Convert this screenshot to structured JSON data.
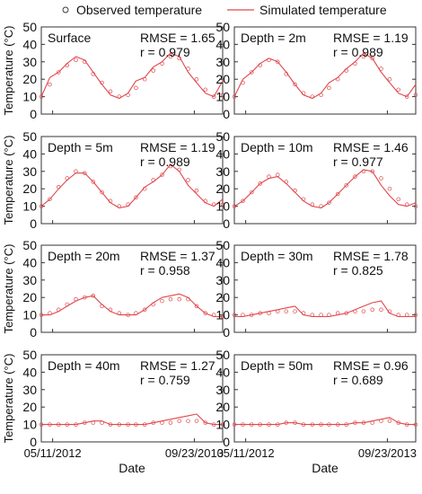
{
  "legend": {
    "observed_label": "Observed temperature",
    "simulated_label": "Simulated temperature",
    "placement": "top-center"
  },
  "colors": {
    "simulated": "#e0474c",
    "observed": "#e0474c",
    "axis": "#333333"
  },
  "chart_data": [
    {
      "type": "line",
      "title": "Surface",
      "rmse": "RMSE = 1.65",
      "r": "r = 0.979",
      "ylabel": "Temperature (°C)",
      "xlabel": "",
      "ylim": [
        0,
        50
      ],
      "yticks": [
        0,
        10,
        20,
        30,
        40,
        50
      ],
      "series": [
        {
          "name": "Simulated temperature",
          "x": [
            "2012-04-01",
            "2012-05-01",
            "2012-06-01",
            "2012-07-01",
            "2012-08-01",
            "2012-09-01",
            "2012-10-01",
            "2012-11-01",
            "2012-12-01",
            "2013-01-01",
            "2013-02-01",
            "2013-03-01",
            "2013-04-01",
            "2013-05-01",
            "2013-06-01",
            "2013-07-01",
            "2013-08-01",
            "2013-09-01",
            "2013-10-01",
            "2013-11-01",
            "2013-12-01",
            "2014-01-01"
          ],
          "y": [
            10,
            21,
            24,
            29,
            33,
            31,
            24,
            17,
            11,
            9,
            12,
            19,
            21,
            27,
            30,
            35,
            33,
            24,
            18,
            12,
            10,
            19
          ]
        },
        {
          "name": "Observed temperature",
          "x": [
            "2012-04-01",
            "2012-05-01",
            "2012-06-01",
            "2012-07-01",
            "2012-08-01",
            "2012-09-01",
            "2012-10-01",
            "2012-11-01",
            "2012-12-01",
            "2013-01-01",
            "2013-02-01",
            "2013-03-01",
            "2013-04-01",
            "2013-05-01",
            "2013-06-01",
            "2013-07-01",
            "2013-08-01",
            "2013-09-01",
            "2013-10-01",
            "2013-11-01",
            "2013-12-01",
            "2014-01-01"
          ],
          "y": [
            10,
            17,
            24,
            28,
            31,
            30,
            23,
            18,
            13,
            10,
            11,
            15,
            20,
            25,
            29,
            33,
            32,
            26,
            20,
            14,
            10,
            11
          ]
        }
      ]
    },
    {
      "type": "line",
      "title": "Depth = 2m",
      "rmse": "RMSE = 1.19",
      "r": "r = 0.989",
      "ylabel": "",
      "xlabel": "",
      "ylim": [
        0,
        50
      ],
      "yticks": [
        0,
        10,
        20,
        30,
        40,
        50
      ],
      "series": [
        {
          "name": "Simulated temperature",
          "x": [
            "2012-04-01",
            "2012-05-01",
            "2012-06-01",
            "2012-07-01",
            "2012-08-01",
            "2012-09-01",
            "2012-10-01",
            "2012-11-01",
            "2012-12-01",
            "2013-01-01",
            "2013-02-01",
            "2013-03-01",
            "2013-04-01",
            "2013-05-01",
            "2013-06-01",
            "2013-07-01",
            "2013-08-01",
            "2013-09-01",
            "2013-10-01",
            "2013-11-01",
            "2013-12-01",
            "2014-01-01"
          ],
          "y": [
            10,
            20,
            24,
            29,
            32,
            30,
            24,
            17,
            11,
            9,
            12,
            18,
            21,
            26,
            30,
            35,
            32,
            24,
            18,
            12,
            10,
            17
          ]
        },
        {
          "name": "Observed temperature",
          "x": [
            "2012-04-01",
            "2012-05-01",
            "2012-06-01",
            "2012-07-01",
            "2012-08-01",
            "2012-09-01",
            "2012-10-01",
            "2012-11-01",
            "2012-12-01",
            "2013-01-01",
            "2013-02-01",
            "2013-03-01",
            "2013-04-01",
            "2013-05-01",
            "2013-06-01",
            "2013-07-01",
            "2013-08-01",
            "2013-09-01",
            "2013-10-01",
            "2013-11-01",
            "2013-12-01",
            "2014-01-01"
          ],
          "y": [
            10,
            18,
            24,
            28,
            31,
            30,
            23,
            17,
            12,
            10,
            11,
            15,
            20,
            25,
            29,
            33,
            32,
            26,
            20,
            14,
            10,
            11
          ]
        }
      ]
    },
    {
      "type": "line",
      "title": "Depth = 5m",
      "rmse": "RMSE = 1.19",
      "r": "r = 0.989",
      "ylabel": "Temperature (°C)",
      "xlabel": "",
      "ylim": [
        0,
        50
      ],
      "yticks": [
        0,
        10,
        20,
        30,
        40,
        50
      ],
      "series": [
        {
          "name": "Simulated temperature",
          "x": [
            "2012-04-01",
            "2012-05-01",
            "2012-06-01",
            "2012-07-01",
            "2012-08-01",
            "2012-09-01",
            "2012-10-01",
            "2012-11-01",
            "2012-12-01",
            "2013-01-01",
            "2013-02-01",
            "2013-03-01",
            "2013-04-01",
            "2013-05-01",
            "2013-06-01",
            "2013-07-01",
            "2013-08-01",
            "2013-09-01",
            "2013-10-01",
            "2013-11-01",
            "2013-12-01",
            "2014-01-01"
          ],
          "y": [
            10,
            14,
            20,
            25,
            29,
            29,
            24,
            18,
            12,
            9,
            10,
            15,
            21,
            24,
            28,
            34,
            30,
            22,
            17,
            12,
            10,
            14
          ]
        },
        {
          "name": "Observed temperature",
          "x": [
            "2012-04-01",
            "2012-05-01",
            "2012-06-01",
            "2012-07-01",
            "2012-08-01",
            "2012-09-01",
            "2012-10-01",
            "2012-11-01",
            "2012-12-01",
            "2013-01-01",
            "2013-02-01",
            "2013-03-01",
            "2013-04-01",
            "2013-05-01",
            "2013-06-01",
            "2013-07-01",
            "2013-08-01",
            "2013-09-01",
            "2013-10-01",
            "2013-11-01",
            "2013-12-01",
            "2014-01-01"
          ],
          "y": [
            10,
            14,
            21,
            26,
            30,
            29,
            24,
            18,
            13,
            10,
            11,
            15,
            20,
            25,
            28,
            33,
            31,
            25,
            19,
            13,
            11,
            11
          ]
        }
      ]
    },
    {
      "type": "line",
      "title": "Depth = 10m",
      "rmse": "RMSE = 1.46",
      "r": "r = 0.977",
      "ylabel": "",
      "xlabel": "",
      "ylim": [
        0,
        50
      ],
      "yticks": [
        0,
        10,
        20,
        30,
        40,
        50
      ],
      "series": [
        {
          "name": "Simulated temperature",
          "x": [
            "2012-04-01",
            "2012-05-01",
            "2012-06-01",
            "2012-07-01",
            "2012-08-01",
            "2012-09-01",
            "2012-10-01",
            "2012-11-01",
            "2012-12-01",
            "2013-01-01",
            "2013-02-01",
            "2013-03-01",
            "2013-04-01",
            "2013-05-01",
            "2013-06-01",
            "2013-07-01",
            "2013-08-01",
            "2013-09-01",
            "2013-10-01",
            "2013-11-01",
            "2013-12-01",
            "2014-01-01"
          ],
          "y": [
            10,
            13,
            18,
            23,
            26,
            27,
            23,
            18,
            13,
            10,
            9,
            12,
            17,
            22,
            27,
            31,
            30,
            22,
            16,
            11,
            10,
            12
          ]
        },
        {
          "name": "Observed temperature",
          "x": [
            "2012-04-01",
            "2012-05-01",
            "2012-06-01",
            "2012-07-01",
            "2012-08-01",
            "2012-09-01",
            "2012-10-01",
            "2012-11-01",
            "2012-12-01",
            "2013-01-01",
            "2013-02-01",
            "2013-03-01",
            "2013-04-01",
            "2013-05-01",
            "2013-06-01",
            "2013-07-01",
            "2013-08-01",
            "2013-09-01",
            "2013-10-01",
            "2013-11-01",
            "2013-12-01",
            "2014-01-01"
          ],
          "y": [
            10,
            13,
            18,
            23,
            27,
            28,
            24,
            19,
            14,
            11,
            10,
            12,
            17,
            22,
            27,
            30,
            30,
            26,
            20,
            14,
            11,
            10
          ]
        }
      ]
    },
    {
      "type": "line",
      "title": "Depth = 20m",
      "rmse": "RMSE = 1.37",
      "r": "r = 0.958",
      "ylabel": "Temperature (°C)",
      "xlabel": "",
      "ylim": [
        0,
        50
      ],
      "yticks": [
        0,
        10,
        20,
        30,
        40,
        50
      ],
      "series": [
        {
          "name": "Simulated temperature",
          "x": [
            "2012-04-01",
            "2012-05-01",
            "2012-06-01",
            "2012-07-01",
            "2012-08-01",
            "2012-09-01",
            "2012-10-01",
            "2012-11-01",
            "2012-12-01",
            "2013-01-01",
            "2013-02-01",
            "2013-03-01",
            "2013-04-01",
            "2013-05-01",
            "2013-06-01",
            "2013-07-01",
            "2013-08-01",
            "2013-09-01",
            "2013-10-01",
            "2013-11-01",
            "2013-12-01",
            "2014-01-01"
          ],
          "y": [
            10,
            10,
            12,
            15,
            18,
            20,
            21,
            16,
            12,
            10,
            10,
            10,
            13,
            17,
            20,
            21,
            22,
            20,
            15,
            11,
            9,
            9
          ]
        },
        {
          "name": "Observed temperature",
          "x": [
            "2012-04-01",
            "2012-05-01",
            "2012-06-01",
            "2012-07-01",
            "2012-08-01",
            "2012-09-01",
            "2012-10-01",
            "2012-11-01",
            "2012-12-01",
            "2013-01-01",
            "2013-02-01",
            "2013-03-01",
            "2013-04-01",
            "2013-05-01",
            "2013-06-01",
            "2013-07-01",
            "2013-08-01",
            "2013-09-01",
            "2013-10-01",
            "2013-11-01",
            "2013-12-01",
            "2014-01-01"
          ],
          "y": [
            10,
            11,
            13,
            16,
            19,
            20,
            21,
            15,
            13,
            11,
            10,
            11,
            13,
            16,
            18,
            19,
            19,
            19,
            15,
            11,
            10,
            9
          ]
        }
      ]
    },
    {
      "type": "line",
      "title": "Depth = 30m",
      "rmse": "RMSE = 1.78",
      "r": "r = 0.825",
      "ylabel": "",
      "xlabel": "",
      "ylim": [
        0,
        50
      ],
      "yticks": [
        0,
        10,
        20,
        30,
        40,
        50
      ],
      "series": [
        {
          "name": "Simulated temperature",
          "x": [
            "2012-04-01",
            "2012-05-01",
            "2012-06-01",
            "2012-07-01",
            "2012-08-01",
            "2012-09-01",
            "2012-10-01",
            "2012-11-01",
            "2012-12-01",
            "2013-01-01",
            "2013-02-01",
            "2013-03-01",
            "2013-04-01",
            "2013-05-01",
            "2013-06-01",
            "2013-07-01",
            "2013-08-01",
            "2013-09-01",
            "2013-10-01",
            "2013-11-01",
            "2013-12-01",
            "2014-01-01"
          ],
          "y": [
            9,
            9,
            10,
            11,
            12,
            13,
            14,
            15,
            10,
            9,
            9,
            9,
            10,
            11,
            13,
            15,
            17,
            18,
            11,
            9,
            9,
            9
          ]
        },
        {
          "name": "Observed temperature",
          "x": [
            "2012-04-01",
            "2012-05-01",
            "2012-06-01",
            "2012-07-01",
            "2012-08-01",
            "2012-09-01",
            "2012-10-01",
            "2012-11-01",
            "2012-12-01",
            "2013-01-01",
            "2013-02-01",
            "2013-03-01",
            "2013-04-01",
            "2013-05-01",
            "2013-06-01",
            "2013-07-01",
            "2013-08-01",
            "2013-09-01",
            "2013-10-01",
            "2013-11-01",
            "2013-12-01",
            "2014-01-01"
          ],
          "y": [
            10,
            10,
            10,
            11,
            11,
            12,
            12,
            12,
            11,
            10,
            10,
            10,
            11,
            11,
            12,
            12,
            13,
            13,
            12,
            10,
            10,
            10
          ]
        }
      ]
    },
    {
      "type": "line",
      "title": "Depth = 40m",
      "rmse": "RMSE = 1.27",
      "r": "r = 0.759",
      "ylabel": "Temperature (°C)",
      "xlabel": "Date",
      "ylim": [
        0,
        50
      ],
      "yticks": [
        0,
        10,
        20,
        30,
        40,
        50
      ],
      "xtick_labels": [
        "05/11/2012",
        "09/23/2013"
      ],
      "series": [
        {
          "name": "Simulated temperature",
          "x": [
            "2012-04-01",
            "2012-05-01",
            "2012-06-01",
            "2012-07-01",
            "2012-08-01",
            "2012-09-01",
            "2012-10-01",
            "2012-11-01",
            "2012-12-01",
            "2013-01-01",
            "2013-02-01",
            "2013-03-01",
            "2013-04-01",
            "2013-05-01",
            "2013-06-01",
            "2013-07-01",
            "2013-08-01",
            "2013-09-01",
            "2013-10-01",
            "2013-11-01",
            "2013-12-01",
            "2014-01-01"
          ],
          "y": [
            10,
            10,
            10,
            10,
            10,
            11,
            12,
            12,
            10,
            10,
            10,
            10,
            10,
            11,
            12,
            13,
            14,
            15,
            16,
            11,
            10,
            10
          ]
        },
        {
          "name": "Observed temperature",
          "x": [
            "2012-04-01",
            "2012-05-01",
            "2012-06-01",
            "2012-07-01",
            "2012-08-01",
            "2012-09-01",
            "2012-10-01",
            "2012-11-01",
            "2012-12-01",
            "2013-01-01",
            "2013-02-01",
            "2013-03-01",
            "2013-04-01",
            "2013-05-01",
            "2013-06-01",
            "2013-07-01",
            "2013-08-01",
            "2013-09-01",
            "2013-10-01",
            "2013-11-01",
            "2013-12-01",
            "2014-01-01"
          ],
          "y": [
            10,
            10,
            10,
            10,
            10,
            11,
            11,
            11,
            10,
            10,
            10,
            10,
            10,
            11,
            11,
            11,
            12,
            12,
            12,
            11,
            10,
            10
          ]
        }
      ]
    },
    {
      "type": "line",
      "title": "Depth = 50m",
      "rmse": "RMSE = 0.96",
      "r": "r = 0.689",
      "ylabel": "",
      "xlabel": "Date",
      "ylim": [
        0,
        50
      ],
      "yticks": [
        0,
        10,
        20,
        30,
        40,
        50
      ],
      "xtick_labels": [
        "05/11/2012",
        "09/23/2013"
      ],
      "series": [
        {
          "name": "Simulated temperature",
          "x": [
            "2012-04-01",
            "2012-05-01",
            "2012-06-01",
            "2012-07-01",
            "2012-08-01",
            "2012-09-01",
            "2012-10-01",
            "2012-11-01",
            "2012-12-01",
            "2013-01-01",
            "2013-02-01",
            "2013-03-01",
            "2013-04-01",
            "2013-05-01",
            "2013-06-01",
            "2013-07-01",
            "2013-08-01",
            "2013-09-01",
            "2013-10-01",
            "2013-11-01",
            "2013-12-01",
            "2014-01-01"
          ],
          "y": [
            10,
            10,
            10,
            10,
            10,
            10,
            11,
            11,
            10,
            10,
            10,
            10,
            10,
            10,
            11,
            11,
            12,
            13,
            14,
            11,
            10,
            10
          ]
        },
        {
          "name": "Observed temperature",
          "x": [
            "2012-04-01",
            "2012-05-01",
            "2012-06-01",
            "2012-07-01",
            "2012-08-01",
            "2012-09-01",
            "2012-10-01",
            "2012-11-01",
            "2012-12-01",
            "2013-01-01",
            "2013-02-01",
            "2013-03-01",
            "2013-04-01",
            "2013-05-01",
            "2013-06-01",
            "2013-07-01",
            "2013-08-01",
            "2013-09-01",
            "2013-10-01",
            "2013-11-01",
            "2013-12-01",
            "2014-01-01"
          ],
          "y": [
            10,
            10,
            10,
            10,
            10,
            10,
            11,
            11,
            10,
            10,
            10,
            10,
            10,
            10,
            11,
            11,
            11,
            12,
            12,
            11,
            10,
            10
          ]
        }
      ]
    }
  ]
}
